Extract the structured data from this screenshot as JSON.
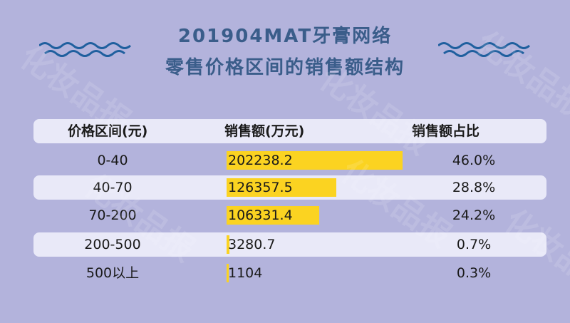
{
  "title_line1": "201904MAT牙膏网络",
  "title_line2": "零售价格区间的销售额结构",
  "watermark": "化妆品报",
  "colors": {
    "background": "#b3b3dc",
    "title": "#3a5d8a",
    "wave": "#1f5f9e",
    "bar": "#fbd321",
    "row_highlight": "#e9e9f8"
  },
  "chart_data": {
    "type": "table",
    "columns": [
      "价格区间(元)",
      "销售额(万元)",
      "销售额占比"
    ],
    "rows": [
      {
        "range": "0-40",
        "sales": 202238.2,
        "sales_label": "202238.2",
        "share": "46.0%"
      },
      {
        "range": "40-70",
        "sales": 126357.5,
        "sales_label": "126357.5",
        "share": "28.8%"
      },
      {
        "range": "70-200",
        "sales": 106331.4,
        "sales_label": "106331.4",
        "share": "24.2%"
      },
      {
        "range": "200-500",
        "sales": 3280.7,
        "sales_label": "3280.7",
        "share": "0.7%"
      },
      {
        "range": "500以上",
        "sales": 1104,
        "sales_label": "1104",
        "share": "0.3%"
      }
    ]
  }
}
